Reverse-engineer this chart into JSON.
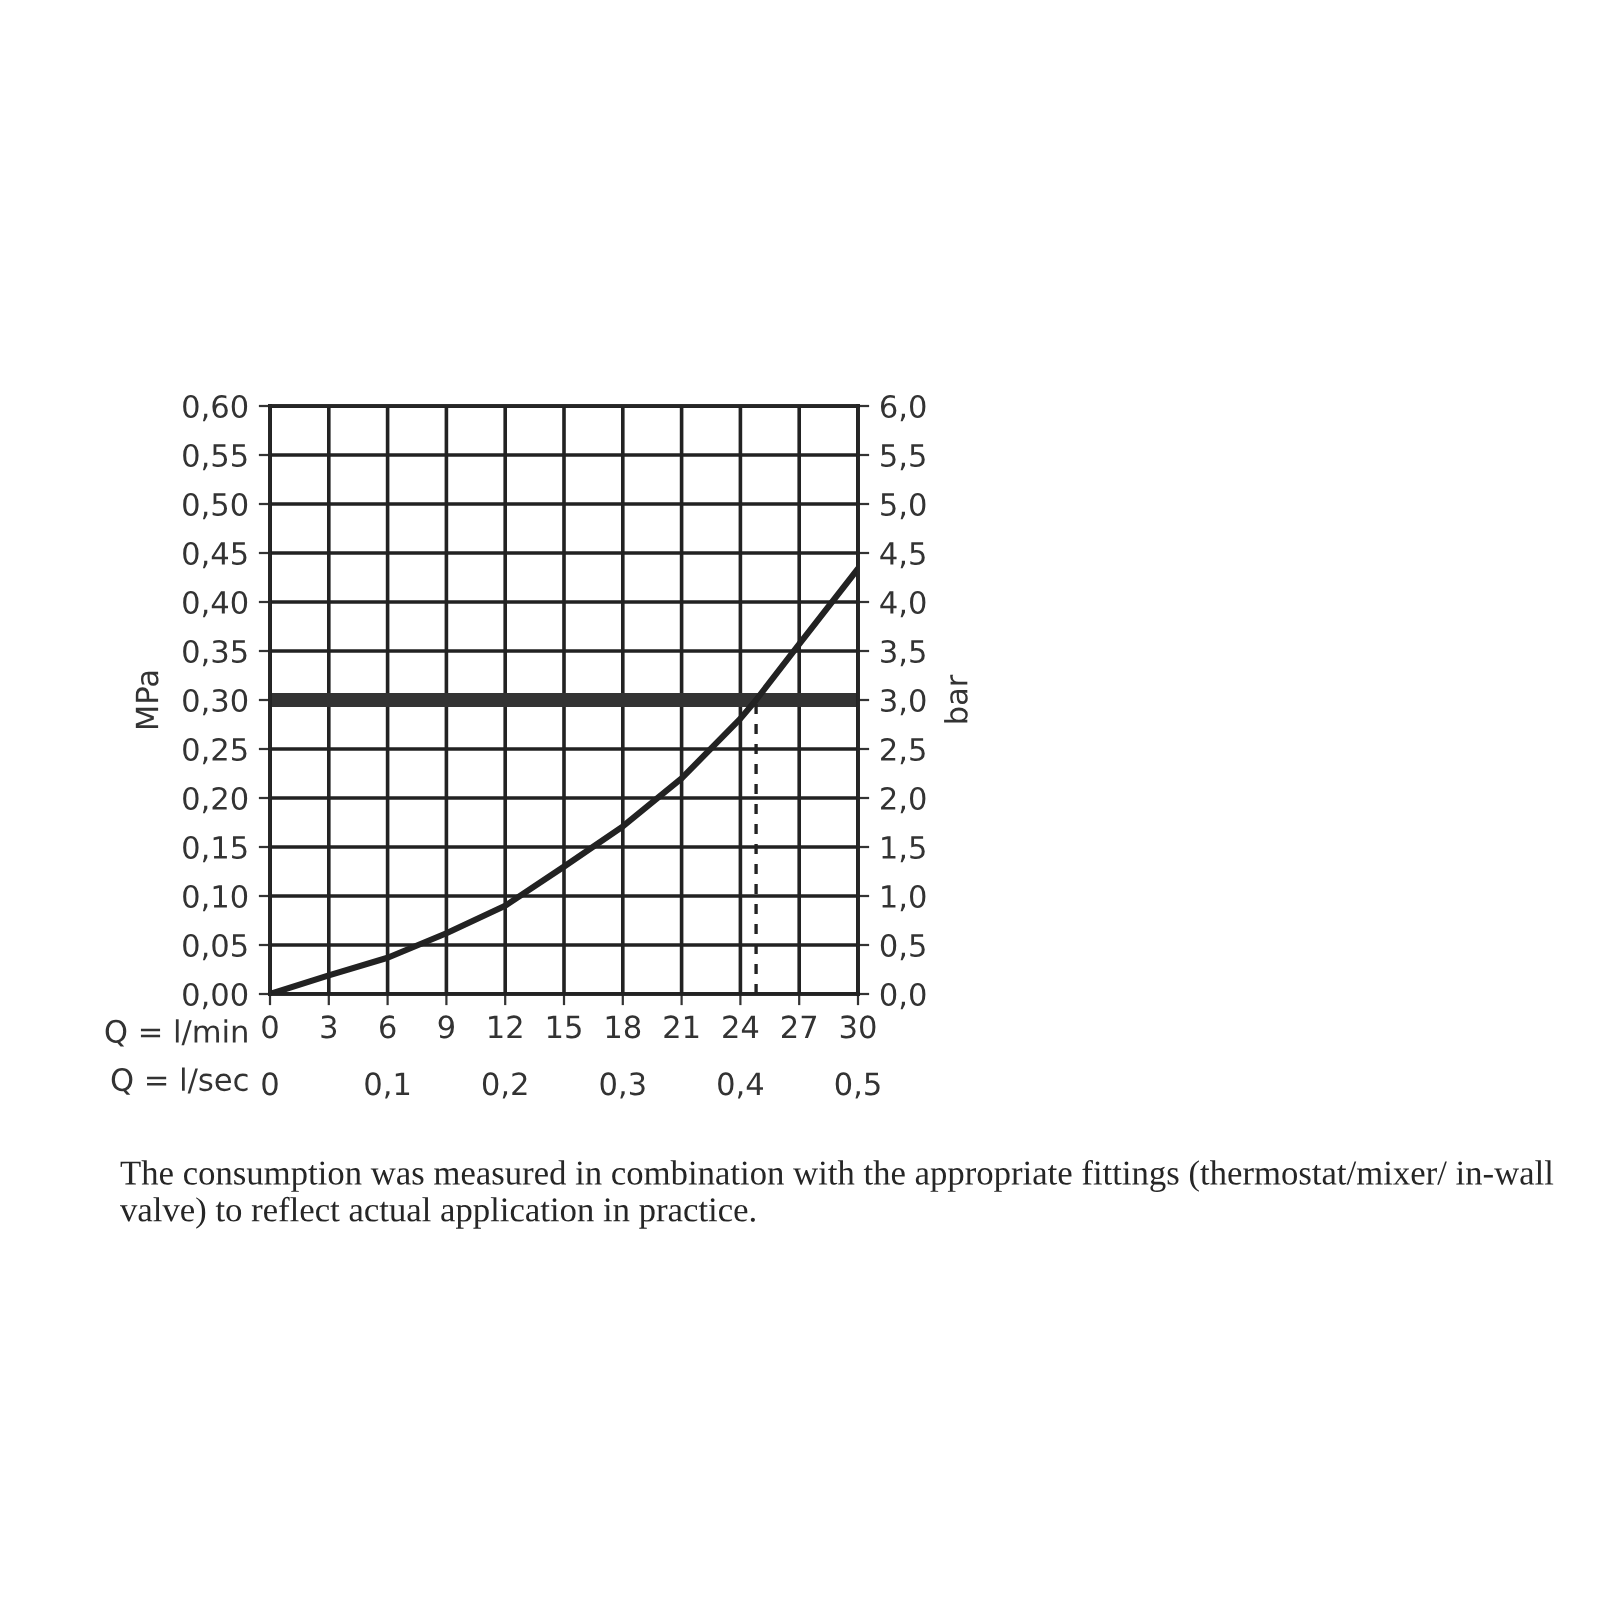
{
  "chart_data": {
    "type": "line",
    "xlabel": "Q = l/min",
    "x2label": "Q = l/sec",
    "ylabel": "MPa",
    "y2label": "bar",
    "series": [
      {
        "color": "#222222",
        "x": [
          0,
          3,
          6,
          9,
          12,
          15,
          18,
          21,
          24,
          24.8,
          27,
          30
        ],
        "values": [
          0,
          0.019,
          0.037,
          0.062,
          0.09,
          0.13,
          0.171,
          0.22,
          0.281,
          0.3,
          0.357,
          0.434
        ],
        "line_style": "solid"
      },
      {
        "color": "#222222",
        "x": [
          24.8,
          24.8
        ],
        "values": [
          0,
          0.3
        ],
        "line_style": "dashed"
      }
    ],
    "xlim": [
      0,
      30
    ],
    "xticks": [
      0,
      3,
      6,
      9,
      12,
      15,
      18,
      21,
      24,
      27,
      30
    ],
    "x2lim": [
      0,
      0.5
    ],
    "x2ticks": [
      0,
      {
        "value": 0.1,
        "label": "0,1"
      },
      {
        "value": 0.2,
        "label": "0,2"
      },
      {
        "value": 0.3,
        "label": "0,3"
      },
      {
        "value": 0.4,
        "label": "0,4"
      },
      {
        "value": 0.5,
        "label": "0,5"
      }
    ],
    "ylim": [
      0,
      0.6
    ],
    "yticks": [
      {
        "value": 0,
        "label": "0,00"
      },
      {
        "value": 0.05,
        "label": "0,05"
      },
      {
        "value": 0.1,
        "label": "0,10"
      },
      {
        "value": 0.15,
        "label": "0,15"
      },
      {
        "value": 0.2,
        "label": "0,20"
      },
      {
        "value": 0.25,
        "label": "0,25"
      },
      {
        "value": 0.3,
        "label": "0,30"
      },
      {
        "value": 0.35,
        "label": "0,35"
      },
      {
        "value": 0.4,
        "label": "0,40"
      },
      {
        "value": 0.45,
        "label": "0,45"
      },
      {
        "value": 0.5,
        "label": "0,50"
      },
      {
        "value": 0.55,
        "label": "0,55"
      },
      {
        "value": 0.6,
        "label": "0,60"
      }
    ],
    "y2lim": [
      0,
      6
    ],
    "y2ticks": [
      {
        "value": 0,
        "label": "0,0"
      },
      {
        "value": 0.5,
        "label": "0,5"
      },
      {
        "value": 1,
        "label": "1,0"
      },
      {
        "value": 1.5,
        "label": "1,5"
      },
      {
        "value": 2,
        "label": "2,0"
      },
      {
        "value": 2.5,
        "label": "2,5"
      },
      {
        "value": 3,
        "label": "3,0"
      },
      {
        "value": 3.5,
        "label": "3,5"
      },
      {
        "value": 4,
        "label": "4,0"
      },
      {
        "value": 4.5,
        "label": "4,5"
      },
      {
        "value": 5,
        "label": "5,0"
      },
      {
        "value": 5.5,
        "label": "5,5"
      },
      {
        "value": 6,
        "label": "6,0"
      }
    ],
    "ref_lines": [
      {
        "axis": "y",
        "value": 0.3,
        "color": "#333333",
        "line_style": "solid"
      }
    ],
    "grid": true,
    "marker": "none",
    "annotations": [
      "The consumption was measured in combination with the appropriate fittings (thermostat/mixer/ in-wall valve) to reflect actual application in practice."
    ]
  }
}
